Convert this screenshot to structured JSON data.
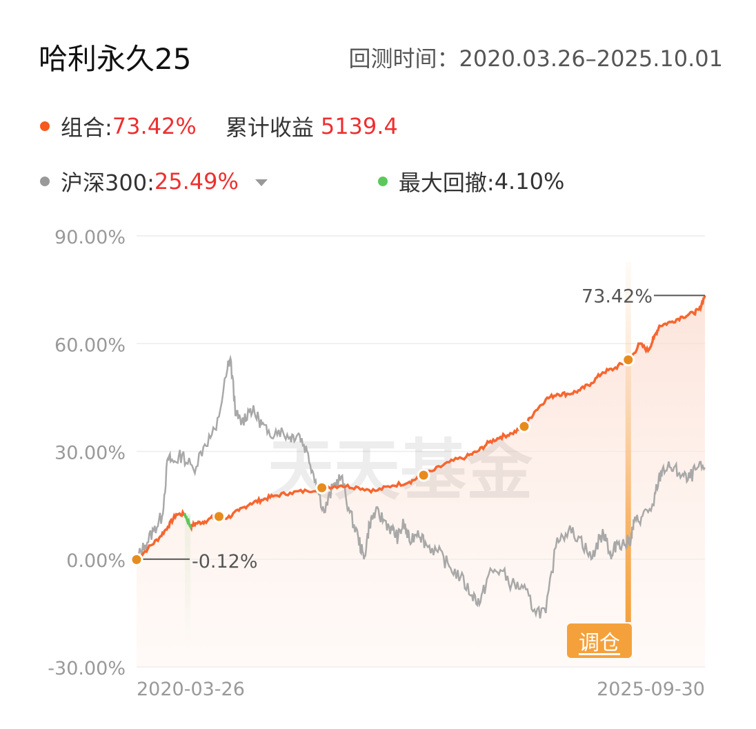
{
  "header": {
    "title": "哈利永久25",
    "period_label": "回测时间：2020.03.26–2025.10.01"
  },
  "legend": {
    "portfolio_label": "组合:",
    "portfolio_value": "73.42%",
    "cumulative_label": "累计收益",
    "cumulative_value": "5139.4",
    "benchmark_label": "沪深300:",
    "benchmark_value": "25.49%",
    "drawdown_label": "最大回撤:",
    "drawdown_value": "4.10%"
  },
  "colors": {
    "portfolio": "#f6662f",
    "benchmark": "#a8a8a8",
    "drawdown": "#5cc85c",
    "value_red": "#ee2f2f",
    "rebalance": "#f4a13c",
    "marker": "#e78c1c"
  },
  "watermark": "天天基金",
  "rebalance_tag": "调仓",
  "chart_data": {
    "type": "line",
    "ylim": [
      -30,
      90
    ],
    "y_ticks": [
      90,
      60,
      30,
      0,
      -30
    ],
    "y_tick_labels": [
      "90.00%",
      "60.00%",
      "30.00%",
      "0.00%",
      "-30.00%"
    ],
    "x_labels": [
      "2020-03-26",
      "2025-09-30"
    ],
    "grid": true,
    "annotations": {
      "start_value_label": "-0.12%",
      "end_value_label": "73.42%",
      "rebalance_label": "调仓"
    },
    "series": [
      {
        "key": "portfolio",
        "x": [
          0,
          0.02,
          0.04,
          0.055,
          0.07,
          0.085,
          0.095,
          0.105,
          0.12,
          0.14,
          0.16,
          0.18,
          0.2,
          0.22,
          0.24,
          0.27,
          0.3,
          0.33,
          0.36,
          0.39,
          0.42,
          0.45,
          0.48,
          0.5,
          0.52,
          0.55,
          0.58,
          0.6,
          0.62,
          0.64,
          0.66,
          0.68,
          0.7,
          0.72,
          0.74,
          0.76,
          0.78,
          0.8,
          0.82,
          0.84,
          0.86,
          0.87,
          0.885,
          0.9,
          0.91,
          0.92,
          0.94,
          0.96,
          0.98,
          0.99,
          1.0
        ],
        "values": [
          -0.12,
          3,
          6,
          9,
          12.5,
          12.5,
          9,
          10,
          10.5,
          12,
          11.5,
          13.5,
          15.5,
          16.5,
          17.5,
          18.5,
          19,
          20,
          20.5,
          20,
          19,
          20.5,
          21.5,
          23,
          24.5,
          27,
          28.5,
          30,
          32.5,
          34,
          35,
          36.5,
          41,
          44.5,
          46,
          46,
          47,
          49,
          52,
          53,
          55,
          56,
          60,
          58,
          61.5,
          65,
          66,
          67.5,
          68.5,
          69.5,
          73.42
        ]
      },
      {
        "key": "benchmark",
        "x": [
          0,
          0.015,
          0.03,
          0.045,
          0.055,
          0.065,
          0.08,
          0.1,
          0.12,
          0.14,
          0.16,
          0.165,
          0.175,
          0.185,
          0.2,
          0.215,
          0.23,
          0.25,
          0.27,
          0.285,
          0.3,
          0.315,
          0.33,
          0.345,
          0.36,
          0.375,
          0.39,
          0.4,
          0.41,
          0.42,
          0.435,
          0.45,
          0.46,
          0.47,
          0.48,
          0.495,
          0.51,
          0.53,
          0.55,
          0.57,
          0.59,
          0.605,
          0.62,
          0.64,
          0.66,
          0.68,
          0.7,
          0.72,
          0.74,
          0.76,
          0.78,
          0.8,
          0.815,
          0.825,
          0.835,
          0.845,
          0.86,
          0.87,
          0.875,
          0.89,
          0.91,
          0.915,
          0.925,
          0.94,
          0.955,
          0.97,
          0.985,
          1.0
        ],
        "values": [
          0,
          4,
          8,
          12,
          28,
          27,
          29,
          25,
          32,
          36,
          53,
          56,
          40,
          38,
          42,
          39,
          35,
          36,
          34,
          35,
          30,
          22,
          13,
          20,
          23,
          13,
          6,
          0,
          10,
          13,
          11,
          8,
          6,
          10,
          5,
          8,
          4,
          2,
          -2,
          -5,
          -10,
          -12,
          -4,
          -3,
          -7,
          -8,
          -14,
          -15,
          6,
          8,
          6,
          0,
          6,
          7,
          0,
          5,
          4,
          6,
          10,
          12,
          15,
          20,
          25,
          25.49,
          24,
          22,
          25,
          25.49
        ]
      }
    ]
  }
}
